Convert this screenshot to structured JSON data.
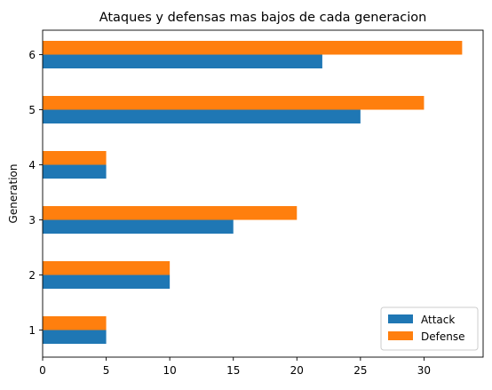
{
  "chart_data": {
    "type": "bar",
    "orientation": "horizontal",
    "title": "Ataques y defensas mas bajos de cada generacion",
    "xlabel": "",
    "ylabel": "Generation",
    "categories": [
      "1",
      "2",
      "3",
      "4",
      "5",
      "6"
    ],
    "series": [
      {
        "name": "Attack",
        "color": "#1f77b4",
        "values": [
          5,
          10,
          15,
          5,
          25,
          22
        ]
      },
      {
        "name": "Defense",
        "color": "#ff7f0e",
        "values": [
          5,
          10,
          20,
          5,
          30,
          33
        ]
      }
    ],
    "xlim": [
      0,
      34.65
    ],
    "xticks": [
      0,
      5,
      10,
      15,
      20,
      25,
      30
    ],
    "grid": false,
    "legend_position": "bottom-right"
  }
}
